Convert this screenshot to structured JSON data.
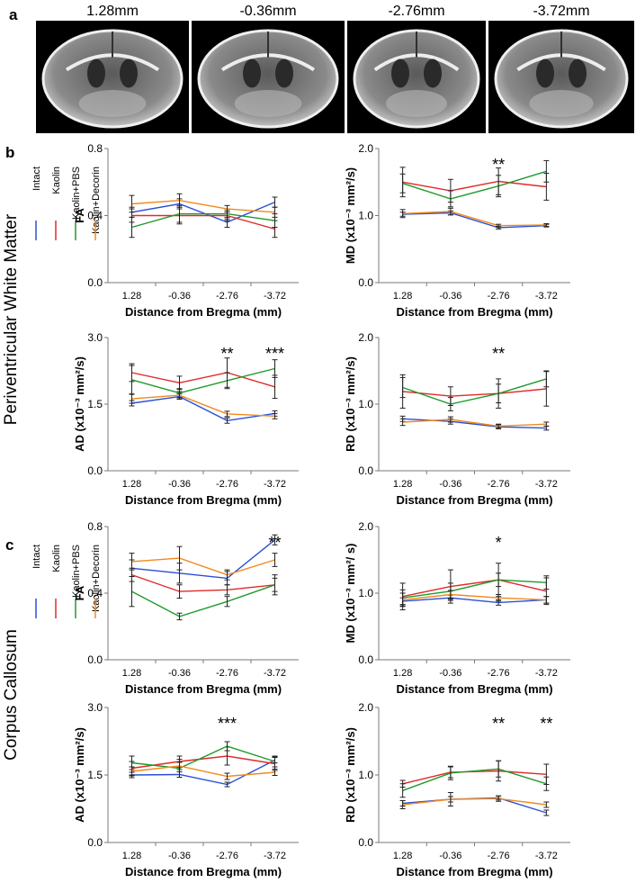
{
  "figure": {
    "panel_a": {
      "label": "a",
      "images": [
        {
          "caption": "1.28mm",
          "image": "mri-coronal-slice"
        },
        {
          "caption": "-0.36mm",
          "image": "mri-coronal-slice"
        },
        {
          "caption": "-2.76mm",
          "image": "mri-coronal-slice"
        },
        {
          "caption": "-3.72mm",
          "image": "mri-coronal-slice"
        }
      ]
    },
    "panel_b": {
      "label": "b",
      "region": "Periventricular White Matter"
    },
    "panel_c": {
      "label": "c",
      "region": "Corpus Callosum"
    },
    "legend": [
      {
        "name": "Intact",
        "color": "#2a4fd8"
      },
      {
        "name": "Kaolin",
        "color": "#e02a2a"
      },
      {
        "name": "Kaolin+PBS",
        "color": "#1f9a2a"
      },
      {
        "name": "Kaolin+Decorin",
        "color": "#f08a1c"
      }
    ]
  },
  "chart_data": [
    {
      "id": "b-fa",
      "type": "line",
      "panel": "b",
      "region": "Periventricular White Matter",
      "ylabel": "FA",
      "xlabel": "Distance from Bregma (mm)",
      "categories": [
        "1.28",
        "-0.36",
        "-2.76",
        "-3.72"
      ],
      "ylim": [
        0,
        0.8
      ],
      "yticks": [
        "0.0",
        "0.4",
        "0.8"
      ],
      "significance": [
        "",
        "",
        "",
        ""
      ],
      "series": [
        {
          "name": "Intact",
          "values": [
            0.42,
            0.47,
            0.36,
            0.48
          ],
          "errors": [
            0.03,
            0.03,
            0.03,
            0.03
          ]
        },
        {
          "name": "Kaolin",
          "values": [
            0.4,
            0.4,
            0.4,
            0.32
          ],
          "errors": [
            0.04,
            0.05,
            0.03,
            0.05
          ]
        },
        {
          "name": "Kaolin+PBS",
          "values": [
            0.33,
            0.41,
            0.41,
            0.37
          ],
          "errors": [
            0.06,
            0.05,
            0.03,
            0.04
          ]
        },
        {
          "name": "Kaolin+Decorin",
          "values": [
            0.47,
            0.49,
            0.44,
            0.42
          ],
          "errors": [
            0.05,
            0.04,
            0.02,
            0.03
          ]
        }
      ]
    },
    {
      "id": "b-md",
      "type": "line",
      "panel": "b",
      "region": "Periventricular White Matter",
      "ylabel": "MD (x10⁻³ mm²/s)",
      "xlabel": "Distance from Bregma (mm)",
      "categories": [
        "1.28",
        "-0.36",
        "-2.76",
        "-3.72"
      ],
      "ylim": [
        0,
        2.0
      ],
      "yticks": [
        "0.0",
        "1.0",
        "2.0"
      ],
      "significance": [
        "",
        "",
        "**",
        ""
      ],
      "series": [
        {
          "name": "Intact",
          "values": [
            1.02,
            1.04,
            0.82,
            0.85
          ],
          "errors": [
            0.03,
            0.03,
            0.02,
            0.02
          ]
        },
        {
          "name": "Kaolin",
          "values": [
            1.5,
            1.37,
            1.51,
            1.43
          ],
          "errors": [
            0.22,
            0.17,
            0.2,
            0.2
          ]
        },
        {
          "name": "Kaolin+PBS",
          "values": [
            1.48,
            1.25,
            1.44,
            1.66
          ],
          "errors": [
            0.14,
            0.12,
            0.16,
            0.16
          ]
        },
        {
          "name": "Kaolin+Decorin",
          "values": [
            1.03,
            1.06,
            0.85,
            0.86
          ],
          "errors": [
            0.06,
            0.05,
            0.02,
            0.02
          ]
        }
      ]
    },
    {
      "id": "b-ad",
      "type": "line",
      "panel": "b",
      "region": "Periventricular White Matter",
      "ylabel": "AD (x10⁻³ mm²/s)",
      "xlabel": "Distance from Bregma (mm)",
      "categories": [
        "1.28",
        "-0.36",
        "-2.76",
        "-3.72"
      ],
      "ylim": [
        0,
        3.0
      ],
      "yticks": [
        "0.0",
        "1.5",
        "3.0"
      ],
      "significance": [
        "",
        "",
        "**",
        "***"
      ],
      "series": [
        {
          "name": "Intact",
          "values": [
            1.52,
            1.67,
            1.13,
            1.29
          ],
          "errors": [
            0.06,
            0.06,
            0.06,
            0.06
          ]
        },
        {
          "name": "Kaolin",
          "values": [
            2.21,
            1.98,
            2.21,
            1.89
          ],
          "errors": [
            0.2,
            0.15,
            0.33,
            0.26
          ]
        },
        {
          "name": "Kaolin+PBS",
          "values": [
            2.05,
            1.75,
            2.03,
            2.3
          ],
          "errors": [
            0.32,
            0.1,
            0.18,
            0.2
          ]
        },
        {
          "name": "Kaolin+Decorin",
          "values": [
            1.62,
            1.7,
            1.28,
            1.23
          ],
          "errors": [
            0.1,
            0.08,
            0.06,
            0.06
          ]
        }
      ]
    },
    {
      "id": "b-rd",
      "type": "line",
      "panel": "b",
      "region": "Periventricular White Matter",
      "ylabel": "RD (x10⁻³ mm²/s)",
      "xlabel": "Distance from Bregma (mm)",
      "categories": [
        "1.28",
        "-0.36",
        "-2.76",
        "-3.72"
      ],
      "ylim": [
        0,
        2.0
      ],
      "yticks": [
        "0.0",
        "1.0",
        "2.0"
      ],
      "significance": [
        "",
        "",
        "**",
        ""
      ],
      "series": [
        {
          "name": "Intact",
          "values": [
            0.78,
            0.74,
            0.66,
            0.64
          ],
          "errors": [
            0.04,
            0.04,
            0.03,
            0.03
          ]
        },
        {
          "name": "Kaolin",
          "values": [
            1.19,
            1.12,
            1.16,
            1.23
          ],
          "errors": [
            0.25,
            0.14,
            0.22,
            0.26
          ]
        },
        {
          "name": "Kaolin+PBS",
          "values": [
            1.25,
            1.0,
            1.16,
            1.38
          ],
          "errors": [
            0.15,
            0.1,
            0.14,
            0.12
          ]
        },
        {
          "name": "Kaolin+Decorin",
          "values": [
            0.73,
            0.77,
            0.67,
            0.7
          ],
          "errors": [
            0.05,
            0.04,
            0.03,
            0.03
          ]
        }
      ]
    },
    {
      "id": "c-fa",
      "type": "line",
      "panel": "c",
      "region": "Corpus Callosum",
      "ylabel": "FA",
      "xlabel": "Distance from Bregma (mm)",
      "categories": [
        "1.28",
        "-0.36",
        "-2.76",
        "-3.72"
      ],
      "ylim": [
        0,
        0.8
      ],
      "yticks": [
        "0.0",
        "0.4",
        "0.8"
      ],
      "significance": [
        "",
        "",
        "",
        "**"
      ],
      "series": [
        {
          "name": "Intact",
          "values": [
            0.55,
            0.52,
            0.49,
            0.72
          ],
          "errors": [
            0.05,
            0.06,
            0.04,
            0.03
          ]
        },
        {
          "name": "Kaolin",
          "values": [
            0.51,
            0.41,
            0.42,
            0.45
          ],
          "errors": [
            0.04,
            0.04,
            0.03,
            0.04
          ]
        },
        {
          "name": "Kaolin+PBS",
          "values": [
            0.41,
            0.26,
            0.35,
            0.45
          ],
          "errors": [
            0.09,
            0.02,
            0.03,
            0.06
          ]
        },
        {
          "name": "Kaolin+Decorin",
          "values": [
            0.59,
            0.61,
            0.51,
            0.6
          ],
          "errors": [
            0.05,
            0.07,
            0.03,
            0.04
          ]
        }
      ]
    },
    {
      "id": "c-md",
      "type": "line",
      "panel": "c",
      "region": "Corpus Callosum",
      "ylabel": "MD (x10⁻³ mm²/ s)",
      "xlabel": "Distance from Bregma (mm)",
      "categories": [
        "1.28",
        "-0.36",
        "-2.76",
        "-3.72"
      ],
      "ylim": [
        0,
        2.0
      ],
      "yticks": [
        "0.0",
        "1.0",
        "2.0"
      ],
      "significance": [
        "",
        "",
        "*",
        ""
      ],
      "series": [
        {
          "name": "Intact",
          "values": [
            0.88,
            0.93,
            0.86,
            0.9
          ],
          "errors": [
            0.05,
            0.04,
            0.04,
            0.05
          ]
        },
        {
          "name": "Kaolin",
          "values": [
            0.95,
            1.1,
            1.2,
            1.03
          ],
          "errors": [
            0.2,
            0.25,
            0.25,
            0.2
          ]
        },
        {
          "name": "Kaolin+PBS",
          "values": [
            0.93,
            1.03,
            1.2,
            1.16
          ],
          "errors": [
            0.12,
            0.12,
            0.1,
            0.1
          ]
        },
        {
          "name": "Kaolin+Decorin",
          "values": [
            0.9,
            0.98,
            0.93,
            0.9
          ],
          "errors": [
            0.1,
            0.06,
            0.05,
            0.05
          ]
        }
      ]
    },
    {
      "id": "c-ad",
      "type": "line",
      "panel": "c",
      "region": "Corpus Callosum",
      "ylabel": "AD (x10⁻³ mm²/s)",
      "xlabel": "Distance from Bregma (mm)",
      "categories": [
        "1.28",
        "-0.36",
        "-2.76",
        "-3.72"
      ],
      "ylim": [
        0,
        3.0
      ],
      "yticks": [
        "0.0",
        "1.5",
        "3.0"
      ],
      "significance": [
        "",
        "",
        "***",
        ""
      ],
      "series": [
        {
          "name": "Intact",
          "values": [
            1.5,
            1.51,
            1.29,
            1.83
          ],
          "errors": [
            0.06,
            0.06,
            0.05,
            0.06
          ]
        },
        {
          "name": "Kaolin",
          "values": [
            1.65,
            1.8,
            1.92,
            1.75
          ],
          "errors": [
            0.15,
            0.12,
            0.2,
            0.15
          ]
        },
        {
          "name": "Kaolin+PBS",
          "values": [
            1.77,
            1.65,
            2.14,
            1.8
          ],
          "errors": [
            0.15,
            0.2,
            0.1,
            0.12
          ]
        },
        {
          "name": "Kaolin+Decorin",
          "values": [
            1.58,
            1.7,
            1.47,
            1.56
          ],
          "errors": [
            0.1,
            0.08,
            0.07,
            0.07
          ]
        }
      ]
    },
    {
      "id": "c-rd",
      "type": "line",
      "panel": "c",
      "region": "Corpus Callosum",
      "ylabel": "RD (x10⁻³ mm²/s)",
      "xlabel": "Distance from Bregma (mm)",
      "categories": [
        "1.28",
        "-0.36",
        "-2.76",
        "-3.72"
      ],
      "ylim": [
        0,
        2.0
      ],
      "yticks": [
        "0.0",
        "1.0",
        "2.0"
      ],
      "significance": [
        "",
        "",
        "**",
        "**"
      ],
      "series": [
        {
          "name": "Intact",
          "values": [
            0.58,
            0.64,
            0.66,
            0.44
          ],
          "errors": [
            0.04,
            0.04,
            0.03,
            0.04
          ]
        },
        {
          "name": "Kaolin",
          "values": [
            0.87,
            1.04,
            1.06,
            1.01
          ],
          "errors": [
            0.05,
            0.08,
            0.15,
            0.15
          ]
        },
        {
          "name": "Kaolin+PBS",
          "values": [
            0.77,
            1.03,
            1.09,
            0.87
          ],
          "errors": [
            0.1,
            0.1,
            0.12,
            0.1
          ]
        },
        {
          "name": "Kaolin+Decorin",
          "values": [
            0.56,
            0.64,
            0.65,
            0.56
          ],
          "errors": [
            0.06,
            0.1,
            0.04,
            0.04
          ]
        }
      ]
    }
  ]
}
